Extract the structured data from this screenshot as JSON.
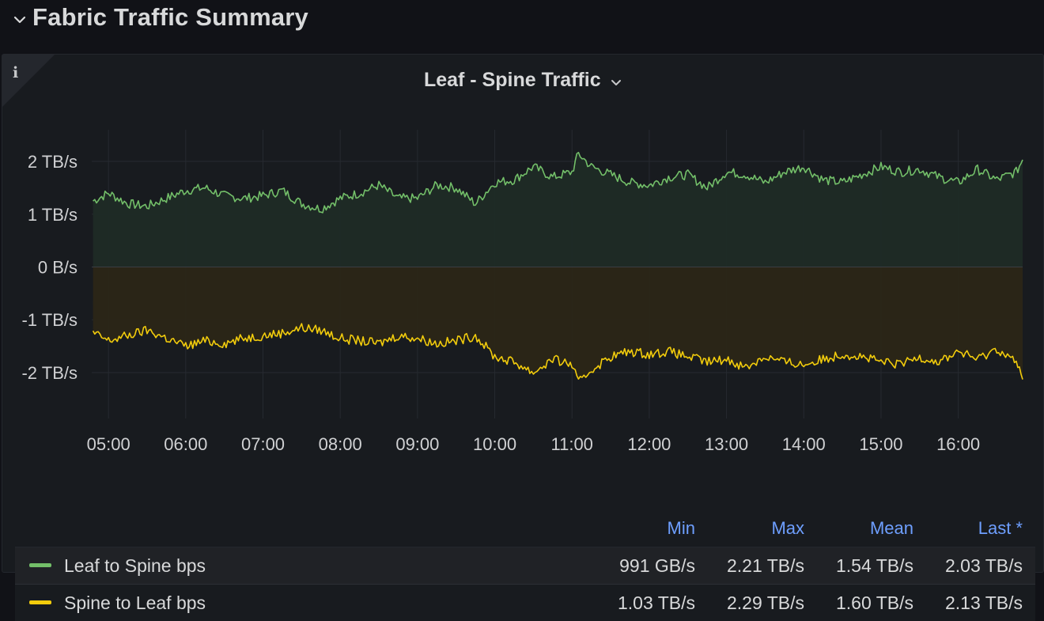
{
  "row": {
    "title": "Fabric Traffic Summary",
    "chevron_icon": "chevron-down-icon"
  },
  "panel": {
    "title": "Leaf - Spine Traffic",
    "info_icon": "info-icon",
    "title_menu_icon": "chevron-down-icon"
  },
  "legend": {
    "headers": [
      "Min",
      "Max",
      "Mean",
      "Last *"
    ],
    "rows": [
      {
        "name": "Leaf to Spine bps",
        "color": "#73bf69",
        "min": "991 GB/s",
        "max": "2.21 TB/s",
        "mean": "1.54 TB/s",
        "last": "2.03 TB/s"
      },
      {
        "name": "Spine to Leaf bps",
        "color": "#f2cc0c",
        "min": "1.03 TB/s",
        "max": "2.29 TB/s",
        "mean": "1.60 TB/s",
        "last": "2.13 TB/s"
      }
    ]
  },
  "chart_data": {
    "type": "area",
    "xlabel": "",
    "ylabel": "",
    "x_ticks": [
      "05:00",
      "06:00",
      "07:00",
      "08:00",
      "09:00",
      "10:00",
      "11:00",
      "12:00",
      "13:00",
      "14:00",
      "15:00",
      "16:00"
    ],
    "y_ticks": [
      "2 TB/s",
      "1 TB/s",
      "0 B/s",
      "-1 TB/s",
      "-2 TB/s"
    ],
    "y_tick_values": [
      2,
      1,
      0,
      -1,
      -2
    ],
    "ylim": [
      -2.9,
      2.6
    ],
    "xlim": [
      "04:47",
      "16:50"
    ],
    "grid": true,
    "legend_position": "bottom",
    "series": [
      {
        "name": "Leaf to Spine bps",
        "color": "#73bf69",
        "fill": "#1f2b26",
        "sign": 1,
        "x": [
          "04:48",
          "05:00",
          "05:15",
          "05:30",
          "05:45",
          "06:00",
          "06:15",
          "06:30",
          "06:45",
          "07:00",
          "07:15",
          "07:30",
          "07:45",
          "08:00",
          "08:15",
          "08:30",
          "08:45",
          "09:00",
          "09:15",
          "09:30",
          "09:45",
          "10:00",
          "10:15",
          "10:30",
          "10:45",
          "11:00",
          "11:05",
          "11:15",
          "11:30",
          "11:45",
          "12:00",
          "12:15",
          "12:30",
          "12:45",
          "13:00",
          "13:15",
          "13:30",
          "13:45",
          "14:00",
          "14:15",
          "14:30",
          "14:45",
          "15:00",
          "15:15",
          "15:30",
          "15:45",
          "16:00",
          "16:15",
          "16:30",
          "16:45",
          "16:50"
        ],
        "values": [
          1.25,
          1.4,
          1.2,
          1.15,
          1.3,
          1.45,
          1.5,
          1.35,
          1.3,
          1.35,
          1.45,
          1.2,
          1.1,
          1.3,
          1.4,
          1.55,
          1.3,
          1.3,
          1.55,
          1.5,
          1.2,
          1.6,
          1.65,
          1.9,
          1.7,
          1.8,
          2.15,
          1.9,
          1.75,
          1.6,
          1.55,
          1.7,
          1.75,
          1.5,
          1.8,
          1.75,
          1.6,
          1.8,
          1.9,
          1.65,
          1.6,
          1.75,
          1.9,
          1.8,
          1.85,
          1.7,
          1.6,
          1.85,
          1.65,
          1.8,
          2.03
        ]
      },
      {
        "name": "Spine to Leaf bps",
        "color": "#f2cc0c",
        "fill": "#2b2617",
        "sign": -1,
        "x": [
          "04:48",
          "05:00",
          "05:15",
          "05:30",
          "05:45",
          "06:00",
          "06:15",
          "06:30",
          "06:45",
          "07:00",
          "07:15",
          "07:30",
          "07:45",
          "08:00",
          "08:15",
          "08:30",
          "08:45",
          "09:00",
          "09:15",
          "09:30",
          "09:45",
          "10:00",
          "10:15",
          "10:30",
          "10:45",
          "11:00",
          "11:05",
          "11:15",
          "11:30",
          "11:45",
          "12:00",
          "12:15",
          "12:30",
          "12:45",
          "13:00",
          "13:15",
          "13:30",
          "13:45",
          "14:00",
          "14:15",
          "14:30",
          "14:45",
          "15:00",
          "15:15",
          "15:30",
          "15:45",
          "16:00",
          "16:15",
          "16:30",
          "16:45",
          "16:50"
        ],
        "values": [
          -1.25,
          -1.4,
          -1.3,
          -1.2,
          -1.35,
          -1.5,
          -1.4,
          -1.45,
          -1.35,
          -1.3,
          -1.25,
          -1.15,
          -1.2,
          -1.35,
          -1.4,
          -1.45,
          -1.3,
          -1.35,
          -1.45,
          -1.4,
          -1.3,
          -1.7,
          -1.8,
          -2.0,
          -1.75,
          -1.85,
          -2.2,
          -1.95,
          -1.7,
          -1.6,
          -1.65,
          -1.6,
          -1.7,
          -1.8,
          -1.75,
          -1.9,
          -1.7,
          -1.8,
          -1.85,
          -1.75,
          -1.65,
          -1.7,
          -1.8,
          -1.85,
          -1.7,
          -1.8,
          -1.6,
          -1.75,
          -1.55,
          -1.8,
          -2.13
        ]
      }
    ]
  }
}
